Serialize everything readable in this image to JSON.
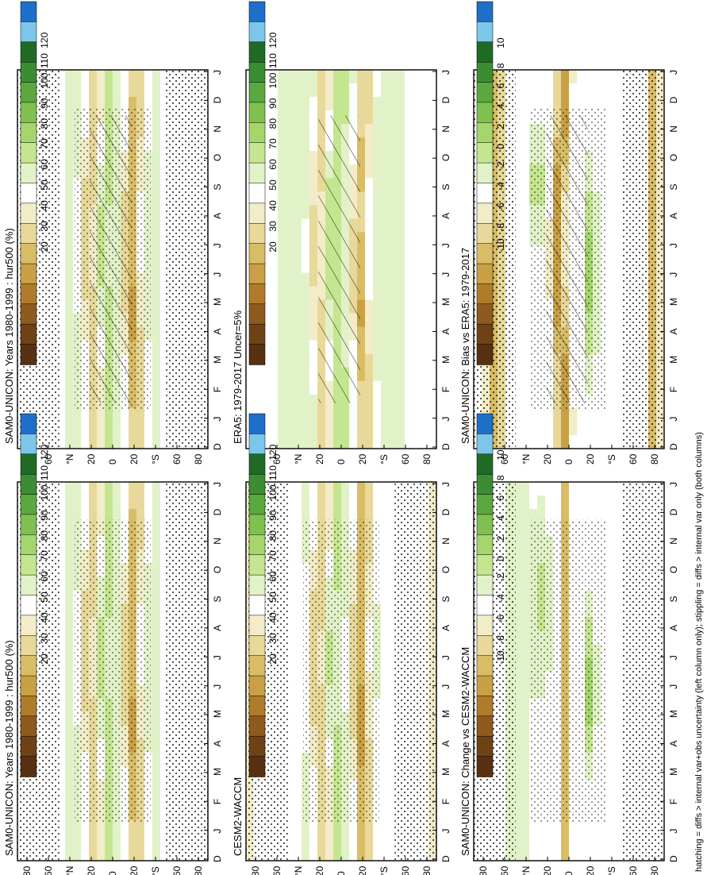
{
  "footnote": "hatching = diffs > internal var+obs uncertainty (left column only); stippling = diffs > internal var only (both columns)",
  "chart_data": [
    {
      "type": "heatmap",
      "title": "SAM0-UNICON: Years 1980-1999 : hur500 (%)",
      "x_ticks": [
        "D",
        "J",
        "F",
        "M",
        "A",
        "M",
        "J",
        "J",
        "A",
        "S",
        "O",
        "N",
        "D",
        "J"
      ],
      "y_ticks": [
        "80",
        "60",
        "°N",
        "20",
        "0",
        "20",
        "°S",
        "60",
        "80"
      ],
      "colorbar": {
        "labels": [
          "120",
          "110",
          "100",
          "90",
          "80",
          "70",
          "60",
          "50",
          "40",
          "30",
          "20"
        ]
      },
      "kind": "abs",
      "hatching": true,
      "stippling": true
    },
    {
      "type": "heatmap",
      "title": "SAM0-UNICON: Years 1980-1999 : hur500 (%)",
      "x_ticks": [
        "D",
        "J",
        "F",
        "M",
        "A",
        "M",
        "J",
        "J",
        "A",
        "S",
        "O",
        "N",
        "D",
        "J"
      ],
      "y_ticks": [
        "80",
        "60",
        "°N",
        "20",
        "0",
        "20",
        "°S",
        "60",
        "80"
      ],
      "colorbar": {
        "labels": [
          "120",
          "110",
          "100",
          "90",
          "80",
          "70",
          "60",
          "50",
          "40",
          "30",
          "20"
        ]
      },
      "kind": "abs",
      "hatching": false,
      "stippling": true
    },
    {
      "type": "heatmap",
      "title": "ERA5: 1979-2017 Uncer=5%",
      "x_ticks": [
        "D",
        "J",
        "F",
        "M",
        "A",
        "M",
        "J",
        "J",
        "A",
        "S",
        "O",
        "N",
        "D",
        "J"
      ],
      "y_ticks": [
        "80",
        "60",
        "°N",
        "20",
        "0",
        "20",
        "°S",
        "60",
        "80"
      ],
      "colorbar": {
        "labels": [
          "120",
          "110",
          "100",
          "90",
          "80",
          "70",
          "60",
          "50",
          "40",
          "30",
          "20"
        ]
      },
      "kind": "abs",
      "hatching": true,
      "stippling": false
    },
    {
      "type": "heatmap",
      "title": "CESM2-WACCM",
      "x_ticks": [
        "D",
        "J",
        "F",
        "M",
        "A",
        "M",
        "J",
        "J",
        "A",
        "S",
        "O",
        "N",
        "D",
        "J"
      ],
      "y_ticks": [
        "80",
        "60",
        "°N",
        "20",
        "0",
        "20",
        "°S",
        "60",
        "80"
      ],
      "colorbar": {
        "labels": [
          "120",
          "110",
          "100",
          "90",
          "80",
          "70",
          "60",
          "50",
          "40",
          "30",
          "20"
        ]
      },
      "kind": "abs",
      "hatching": false,
      "stippling": true
    },
    {
      "type": "heatmap",
      "title": "SAM0-UNICON: Bias vs ERA5: 1979-2017",
      "x_ticks": [
        "D",
        "J",
        "F",
        "M",
        "A",
        "M",
        "J",
        "J",
        "A",
        "S",
        "O",
        "N",
        "D",
        "J"
      ],
      "y_ticks": [
        "80",
        "60",
        "°N",
        "20",
        "0",
        "20",
        "°S",
        "60",
        "80"
      ],
      "colorbar": {
        "labels": [
          "10",
          "8",
          "6",
          "4",
          "2",
          "0",
          "-2",
          "-4",
          "-6",
          "-8",
          "-10"
        ]
      },
      "kind": "diff",
      "hatching": true,
      "stippling": true
    },
    {
      "type": "heatmap",
      "title": "SAM0-UNICON: Change vs CESM2-WACCM",
      "x_ticks": [
        "D",
        "J",
        "F",
        "M",
        "A",
        "M",
        "J",
        "J",
        "A",
        "S",
        "O",
        "N",
        "D",
        "J"
      ],
      "y_ticks": [
        "80",
        "60",
        "°N",
        "20",
        "0",
        "20",
        "°S",
        "60",
        "80"
      ],
      "colorbar": {
        "labels": [
          "10",
          "8",
          "6",
          "4",
          "2",
          "0",
          "-2",
          "-4",
          "-6",
          "-8",
          "-10"
        ]
      },
      "kind": "diff",
      "hatching": false,
      "stippling": true
    }
  ],
  "colors": {
    "scale": [
      "#1d6fc9",
      "#7cc6ea",
      "#1f6b25",
      "#3a8d33",
      "#5aa83f",
      "#7fc04e",
      "#a4d66c",
      "#c4e690",
      "#e2f2c8",
      "#ffffff",
      "#f3ecc8",
      "#e8d99a",
      "#d9bd66",
      "#c9a044",
      "#b07c2c",
      "#8f5a1e",
      "#6f4216",
      "#573112"
    ]
  }
}
